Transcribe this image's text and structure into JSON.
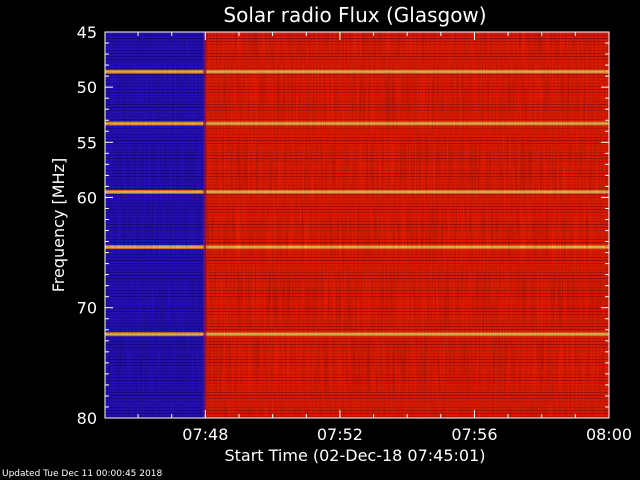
{
  "footer": {
    "updated": "Updated Tue Dec 11 00:00:45 2018"
  },
  "chart_data": {
    "type": "heatmap",
    "title": "Solar radio Flux (Glasgow)",
    "xlabel": "Start Time (02-Dec-18 07:45:01)",
    "ylabel": "Frequency [MHz]",
    "xlim": [
      "07:45:01",
      "08:00:00"
    ],
    "ylim": [
      45,
      80
    ],
    "y_inverted": true,
    "x_ticks": [
      "07:48",
      "07:52",
      "07:56",
      "08:00"
    ],
    "y_ticks": [
      45,
      50,
      55,
      60,
      70,
      80
    ],
    "colors": {
      "background": "#000000",
      "high_flux": "#ff2000",
      "low_flux": "#2a12d0",
      "band_peak": "#ffd060"
    },
    "onset_time": "07:48",
    "bright_bands_mhz": [
      48.6,
      53.3,
      59.5,
      64.5,
      72.4
    ],
    "regions": [
      {
        "t_start": "07:45:01",
        "t_end": "07:48",
        "level": "low"
      },
      {
        "t_start": "07:48",
        "t_end": "08:00:00",
        "level": "high"
      }
    ]
  }
}
